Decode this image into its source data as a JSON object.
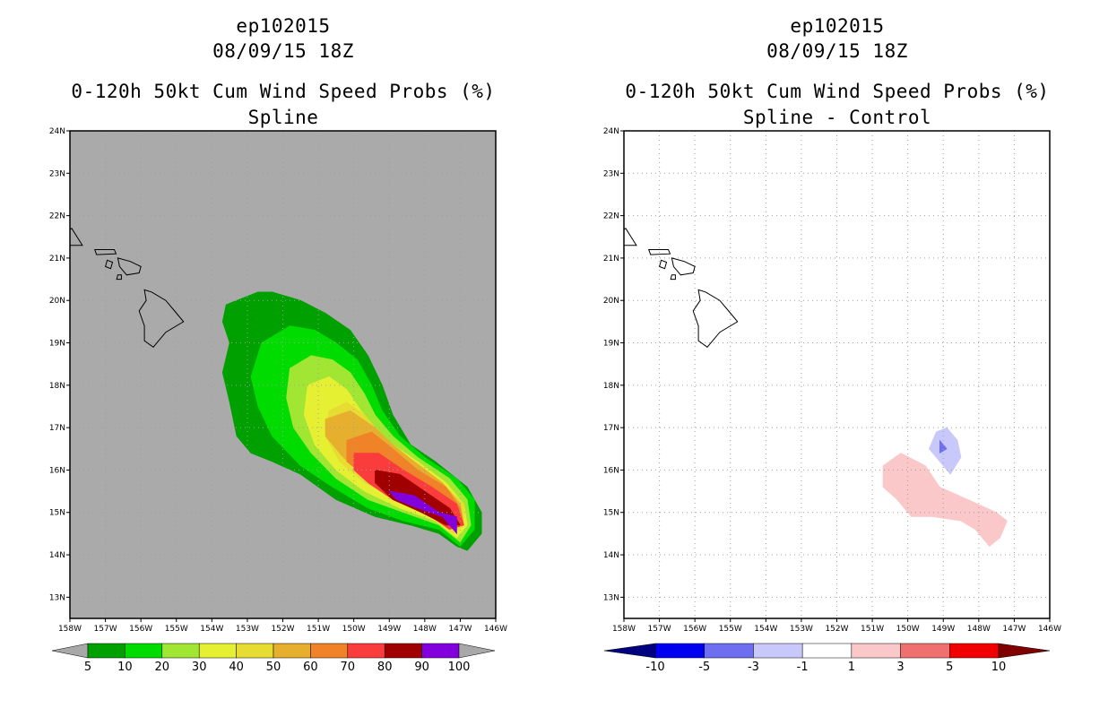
{
  "chart_data": [
    {
      "type": "contour-map",
      "panel": "left",
      "title_lines": [
        "ep102015",
        "08/09/15 18Z"
      ],
      "subtitle_lines": [
        "0-120h 50kt Cum Wind Speed Probs (%)",
        "Spline"
      ],
      "lon_ticks": [
        "158W",
        "157W",
        "156W",
        "155W",
        "154W",
        "153W",
        "152W",
        "151W",
        "150W",
        "149W",
        "148W",
        "147W",
        "146W"
      ],
      "lat_ticks": [
        "13N",
        "14N",
        "15N",
        "16N",
        "17N",
        "18N",
        "19N",
        "20N",
        "21N",
        "22N",
        "23N",
        "24N"
      ],
      "lon_range": [
        -158,
        -146
      ],
      "lat_range": [
        12.5,
        24
      ],
      "background_color": "#aaaaaa",
      "colorbar": {
        "labels": [
          "5",
          "10",
          "20",
          "30",
          "40",
          "50",
          "60",
          "70",
          "80",
          "90",
          "100"
        ],
        "colors": [
          "#00a000",
          "#00dc00",
          "#a0e632",
          "#e6f032",
          "#e6dc32",
          "#e6af2d",
          "#f08228",
          "#fa3c3c",
          "#a00000",
          "#8200dc"
        ],
        "end_color": "#a8a8a8"
      },
      "contour_levels": [
        {
          "level": 5,
          "color": "#00a000",
          "polygon": [
            [
              -153.6,
              19.9
            ],
            [
              -152.7,
              20.2
            ],
            [
              -152.3,
              20.2
            ],
            [
              -151.5,
              20.0
            ],
            [
              -150.8,
              19.7
            ],
            [
              -150.1,
              19.3
            ],
            [
              -149.6,
              18.7
            ],
            [
              -149.2,
              18.0
            ],
            [
              -148.9,
              17.3
            ],
            [
              -148.4,
              16.6
            ],
            [
              -147.7,
              16.2
            ],
            [
              -146.8,
              15.6
            ],
            [
              -146.4,
              15.0
            ],
            [
              -146.4,
              14.5
            ],
            [
              -146.8,
              14.1
            ],
            [
              -147.1,
              14.2
            ],
            [
              -147.6,
              14.5
            ],
            [
              -148.4,
              14.7
            ],
            [
              -149.4,
              14.9
            ],
            [
              -150.5,
              15.3
            ],
            [
              -151.5,
              15.9
            ],
            [
              -152.3,
              16.2
            ],
            [
              -152.9,
              16.4
            ],
            [
              -153.3,
              16.8
            ],
            [
              -153.5,
              17.6
            ],
            [
              -153.7,
              18.3
            ],
            [
              -153.5,
              19.0
            ],
            [
              -153.7,
              19.5
            ]
          ]
        },
        {
          "level": 10,
          "color": "#00dc00",
          "polygon": [
            [
              -152.6,
              19.0
            ],
            [
              -151.8,
              19.4
            ],
            [
              -151.1,
              19.3
            ],
            [
              -150.5,
              19.0
            ],
            [
              -149.9,
              18.6
            ],
            [
              -149.5,
              18.0
            ],
            [
              -149.2,
              17.4
            ],
            [
              -148.7,
              16.8
            ],
            [
              -148.0,
              16.3
            ],
            [
              -147.1,
              15.8
            ],
            [
              -146.6,
              15.3
            ],
            [
              -146.6,
              14.6
            ],
            [
              -147.0,
              14.2
            ],
            [
              -147.6,
              14.6
            ],
            [
              -148.6,
              14.8
            ],
            [
              -149.6,
              15.1
            ],
            [
              -150.6,
              15.6
            ],
            [
              -151.5,
              16.1
            ],
            [
              -152.3,
              16.8
            ],
            [
              -152.7,
              17.5
            ],
            [
              -152.9,
              18.2
            ]
          ]
        },
        {
          "level": 20,
          "color": "#a0e632",
          "polygon": [
            [
              -151.8,
              18.4
            ],
            [
              -151.2,
              18.7
            ],
            [
              -150.6,
              18.6
            ],
            [
              -150.1,
              18.3
            ],
            [
              -149.7,
              17.8
            ],
            [
              -149.4,
              17.3
            ],
            [
              -148.9,
              16.8
            ],
            [
              -148.2,
              16.3
            ],
            [
              -147.3,
              15.8
            ],
            [
              -146.8,
              15.3
            ],
            [
              -146.7,
              14.7
            ],
            [
              -147.0,
              14.3
            ],
            [
              -147.6,
              14.7
            ],
            [
              -148.6,
              15.0
            ],
            [
              -149.6,
              15.3
            ],
            [
              -150.5,
              15.8
            ],
            [
              -151.2,
              16.4
            ],
            [
              -151.7,
              17.0
            ],
            [
              -151.9,
              17.7
            ]
          ]
        },
        {
          "level": 30,
          "color": "#e6f032",
          "polygon": [
            [
              -151.3,
              18.0
            ],
            [
              -150.7,
              18.2
            ],
            [
              -150.2,
              17.9
            ],
            [
              -149.8,
              17.4
            ],
            [
              -149.4,
              17.0
            ],
            [
              -148.9,
              16.6
            ],
            [
              -148.2,
              16.2
            ],
            [
              -147.4,
              15.7
            ],
            [
              -146.9,
              15.2
            ],
            [
              -146.8,
              14.7
            ],
            [
              -147.1,
              14.4
            ],
            [
              -147.7,
              14.8
            ],
            [
              -148.7,
              15.1
            ],
            [
              -149.7,
              15.5
            ],
            [
              -150.5,
              16.0
            ],
            [
              -151.1,
              16.6
            ],
            [
              -151.4,
              17.3
            ]
          ]
        },
        {
          "level": 40,
          "color": "#e6dc32",
          "polygon": [
            [
              -150.7,
              17.4
            ],
            [
              -150.2,
              17.6
            ],
            [
              -149.7,
              17.3
            ],
            [
              -149.3,
              16.9
            ],
            [
              -148.8,
              16.5
            ],
            [
              -148.1,
              16.1
            ],
            [
              -147.4,
              15.6
            ],
            [
              -146.9,
              15.2
            ],
            [
              -146.9,
              14.7
            ],
            [
              -147.2,
              14.5
            ],
            [
              -147.8,
              14.9
            ],
            [
              -148.8,
              15.3
            ],
            [
              -149.7,
              15.7
            ],
            [
              -150.4,
              16.2
            ],
            [
              -150.8,
              16.8
            ]
          ]
        },
        {
          "level": 50,
          "color": "#e6af2d",
          "polygon": [
            [
              -150.8,
              17.2
            ],
            [
              -150.1,
              17.4
            ],
            [
              -149.4,
              17.0
            ],
            [
              -148.9,
              16.6
            ],
            [
              -148.3,
              16.2
            ],
            [
              -147.5,
              15.7
            ],
            [
              -147.0,
              15.2
            ],
            [
              -146.9,
              14.7
            ],
            [
              -147.3,
              14.6
            ],
            [
              -147.9,
              15.0
            ],
            [
              -148.8,
              15.4
            ],
            [
              -149.6,
              15.8
            ],
            [
              -150.3,
              16.3
            ],
            [
              -150.8,
              16.8
            ]
          ]
        },
        {
          "level": 60,
          "color": "#f08228",
          "polygon": [
            [
              -150.2,
              16.7
            ],
            [
              -149.5,
              16.9
            ],
            [
              -148.9,
              16.5
            ],
            [
              -148.2,
              16.0
            ],
            [
              -147.4,
              15.6
            ],
            [
              -147.0,
              15.1
            ],
            [
              -146.9,
              14.7
            ],
            [
              -147.3,
              14.6
            ],
            [
              -148.0,
              15.0
            ],
            [
              -148.9,
              15.4
            ],
            [
              -149.6,
              15.8
            ],
            [
              -150.2,
              16.2
            ]
          ]
        },
        {
          "level": 70,
          "color": "#fa3c3c",
          "polygon": [
            [
              -150.0,
              16.4
            ],
            [
              -149.3,
              16.4
            ],
            [
              -148.6,
              16.0
            ],
            [
              -147.8,
              15.6
            ],
            [
              -147.1,
              15.2
            ],
            [
              -146.9,
              14.7
            ],
            [
              -147.3,
              14.6
            ],
            [
              -148.0,
              15.0
            ],
            [
              -148.9,
              15.3
            ],
            [
              -149.6,
              15.7
            ],
            [
              -150.0,
              16.0
            ]
          ]
        },
        {
          "level": 80,
          "color": "#a00000",
          "polygon": [
            [
              -149.4,
              16.0
            ],
            [
              -148.7,
              15.9
            ],
            [
              -148.0,
              15.5
            ],
            [
              -147.3,
              15.1
            ],
            [
              -147.0,
              14.7
            ],
            [
              -147.4,
              14.7
            ],
            [
              -148.1,
              15.0
            ],
            [
              -148.9,
              15.3
            ],
            [
              -149.4,
              15.7
            ]
          ]
        },
        {
          "level": 90,
          "color": "#8200dc",
          "polygon": [
            [
              -149.0,
              15.5
            ],
            [
              -148.3,
              15.4
            ],
            [
              -147.6,
              15.0
            ],
            [
              -147.1,
              14.9
            ],
            [
              -147.1,
              14.5
            ],
            [
              -147.5,
              14.9
            ],
            [
              -148.2,
              15.1
            ],
            [
              -148.8,
              15.3
            ]
          ]
        }
      ]
    },
    {
      "type": "contour-map",
      "panel": "right",
      "title_lines": [
        "ep102015",
        "08/09/15 18Z"
      ],
      "subtitle_lines": [
        "0-120h 50kt Cum Wind Speed Probs (%)",
        "Spline - Control"
      ],
      "lon_ticks": [
        "158W",
        "157W",
        "156W",
        "155W",
        "154W",
        "153W",
        "152W",
        "151W",
        "150W",
        "149W",
        "148W",
        "147W",
        "146W"
      ],
      "lat_ticks": [
        "13N",
        "14N",
        "15N",
        "16N",
        "17N",
        "18N",
        "19N",
        "20N",
        "21N",
        "22N",
        "23N",
        "24N"
      ],
      "lon_range": [
        -158,
        -146
      ],
      "lat_range": [
        12.5,
        24
      ],
      "grid": true,
      "colorbar": {
        "labels": [
          "-10",
          "-5",
          "-3",
          "-1",
          "1",
          "3",
          "5",
          "10"
        ],
        "colors": [
          "#0000f0",
          "#6e6ef0",
          "#c8c8fa",
          "#ffffff",
          "#fac8c8",
          "#f07070",
          "#f00000"
        ],
        "low_end_color": "#000080",
        "high_end_color": "#800000"
      },
      "contour_levels": [
        {
          "level": -1,
          "color": "#c8c8fa",
          "polygon": [
            [
              -149.2,
              16.9
            ],
            [
              -148.9,
              17.0
            ],
            [
              -148.6,
              16.7
            ],
            [
              -148.5,
              16.3
            ],
            [
              -148.8,
              15.9
            ],
            [
              -149.1,
              16.2
            ],
            [
              -149.4,
              16.5
            ]
          ]
        },
        {
          "level": -3,
          "color": "#6e6ef0",
          "polygon": [
            [
              -149.1,
              16.7
            ],
            [
              -148.9,
              16.5
            ],
            [
              -149.1,
              16.4
            ]
          ]
        },
        {
          "level": 1,
          "color": "#fac8c8",
          "polygon": [
            [
              -150.2,
              16.4
            ],
            [
              -149.5,
              16.1
            ],
            [
              -149.1,
              15.6
            ],
            [
              -148.3,
              15.3
            ],
            [
              -147.5,
              15.0
            ],
            [
              -147.2,
              14.8
            ],
            [
              -147.4,
              14.4
            ],
            [
              -147.7,
              14.2
            ],
            [
              -148.1,
              14.6
            ],
            [
              -148.5,
              14.8
            ],
            [
              -149.3,
              14.9
            ],
            [
              -149.9,
              14.9
            ],
            [
              -150.3,
              15.3
            ],
            [
              -150.7,
              15.6
            ],
            [
              -150.7,
              16.1
            ]
          ]
        }
      ]
    }
  ]
}
